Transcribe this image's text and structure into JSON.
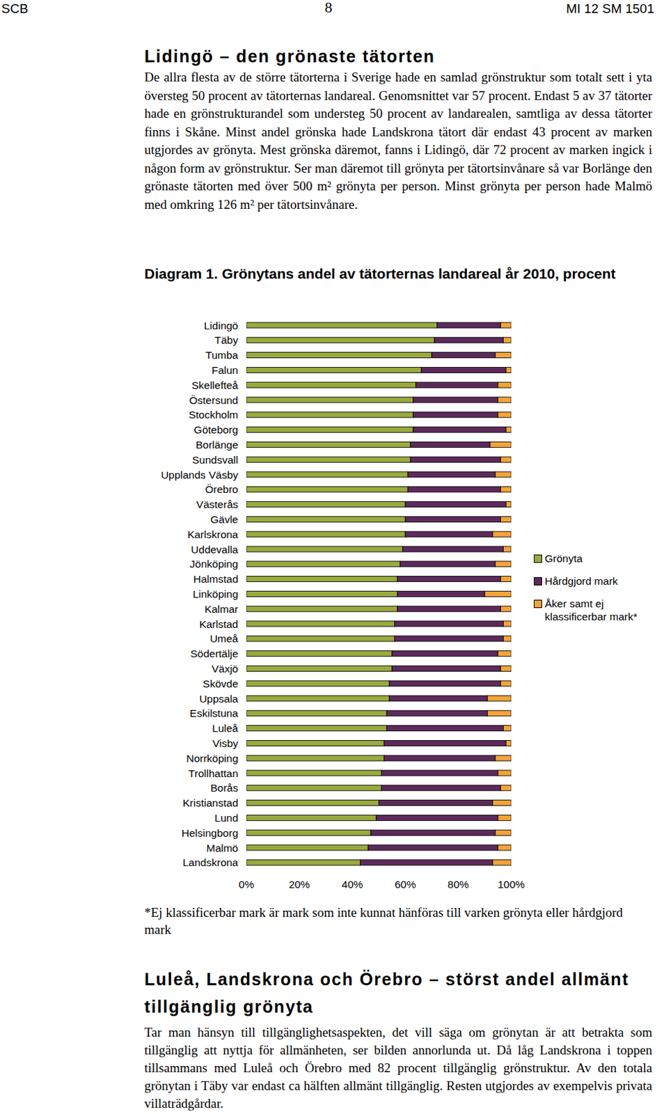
{
  "header": {
    "left": "SCB",
    "center": "8",
    "right": "MI 12 SM 1501"
  },
  "sections": [
    {
      "heading": "Lidingö – den grönaste tätorten",
      "paragraphs": [
        "De allra flesta av de större tätorterna i Sverige hade en samlad grönstruktur som totalt sett i yta översteg 50 procent av tätorternas landareal. Genomsnittet var 57 procent. Endast 5 av 37 tätorter hade en grönstrukturandel som understeg 50 procent av landarealen, samtliga av dessa tätorter finns i Skåne. Minst andel grönska hade Landskrona tätort där endast 43 procent av marken utgjordes av grönyta. Mest grönska däremot, fanns i Lidingö, där 72 procent av marken ingick i någon form av grönstruktur. Ser man däremot till grönyta per tätortsinvånare så var Borlänge den grönaste tätorten med över 500 m² grönyta per person. Minst grönyta per person hade Malmö med omkring 126 m² per tätortsinvånare."
      ]
    },
    {
      "heading": "Luleå, Landskrona och Örebro – störst andel allmänt tillgänglig grönyta",
      "paragraphs": [
        "Tar man hänsyn till tillgänglighetsaspekten, det vill säga om grönytan är att betrakta som tillgänglig att nyttja för allmänheten, ser bilden annorlunda ut. Då låg Landskrona i toppen tillsammans med Luleå och Örebro med 82 procent tillgänglig grönstruktur. Av den totala grönytan i Täby var endast ca hälften allmänt tillgänglig. Resten utgjordes av exempelvis privata villaträdgårdar."
      ]
    }
  ],
  "chart_data": {
    "type": "bar",
    "orientation": "horizontal",
    "stacked": true,
    "grid": false,
    "legend": "right",
    "title": "Diagram 1. Grönytans andel av tätorternas landareal år 2010, procent",
    "footnote": "*Ej klassificerbar mark är mark som inte kunnat hänföras till varken grönyta eller hårdgjord mark",
    "categories": [
      "Lidingö",
      "Täby",
      "Tumba",
      "Falun",
      "Skellefteå",
      "Östersund",
      "Stockholm",
      "Göteborg",
      "Borlänge",
      "Sundsvall",
      "Upplands Väsby",
      "Örebro",
      "Västerås",
      "Gävle",
      "Karlskrona",
      "Uddevalla",
      "Jönköping",
      "Halmstad",
      "Linköping",
      "Kalmar",
      "Karlstad",
      "Umeå",
      "Södertälje",
      "Växjö",
      "Skövde",
      "Uppsala",
      "Eskilstuna",
      "Luleå",
      "Visby",
      "Norrköping",
      "Trollhattan",
      "Borås",
      "Kristianstad",
      "Lund",
      "Helsingborg",
      "Malmö",
      "Landskrona"
    ],
    "series": [
      {
        "name": "Grönyta",
        "color": "#9aaa3e",
        "values": [
          72,
          71,
          70,
          66,
          64,
          63,
          63,
          63,
          62,
          62,
          61,
          61,
          60,
          60,
          60,
          59,
          58,
          57,
          57,
          57,
          56,
          56,
          55,
          55,
          54,
          54,
          53,
          53,
          52,
          52,
          51,
          51,
          50,
          49,
          47,
          46,
          43
        ]
      },
      {
        "name": "Hårdgjord mark",
        "color": "#5d2a5b",
        "values": [
          24,
          26,
          24,
          32,
          31,
          32,
          32,
          35,
          30,
          34,
          33,
          35,
          38,
          36,
          33,
          38,
          36,
          39,
          33,
          39,
          41,
          41,
          40,
          41,
          42,
          37,
          38,
          44,
          46,
          42,
          44,
          45,
          43,
          46,
          47,
          49,
          50
        ]
      },
      {
        "name": "Åker samt ej klassificerbar mark*",
        "color": "#f4a437",
        "values": [
          4,
          3,
          6,
          2,
          5,
          5,
          5,
          2,
          8,
          4,
          6,
          4,
          2,
          4,
          7,
          3,
          6,
          4,
          10,
          4,
          3,
          3,
          5,
          4,
          4,
          9,
          9,
          3,
          2,
          6,
          5,
          4,
          7,
          5,
          6,
          5,
          7
        ]
      }
    ],
    "xlim": [
      0,
      100
    ],
    "xticks": [
      {
        "value": 0,
        "label": "0%"
      },
      {
        "value": 20,
        "label": "20%"
      },
      {
        "value": 40,
        "label": "40%"
      },
      {
        "value": 60,
        "label": "60%"
      },
      {
        "value": 80,
        "label": "80%"
      },
      {
        "value": 100,
        "label": "100%"
      }
    ]
  }
}
